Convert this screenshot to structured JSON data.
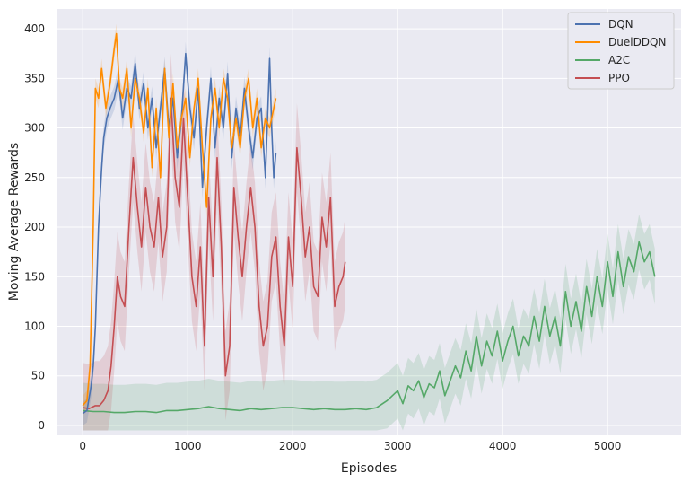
{
  "chart_data": {
    "type": "line",
    "title": "",
    "xlabel": "Episodes",
    "ylabel": "Moving Average Rewards",
    "xlim": [
      -250,
      5700
    ],
    "ylim": [
      -10,
      420
    ],
    "xticks": [
      0,
      1000,
      2000,
      3000,
      4000,
      5000
    ],
    "yticks": [
      0,
      50,
      100,
      150,
      200,
      250,
      300,
      350,
      400
    ],
    "grid": true,
    "legend_position": "top-right",
    "series": [
      {
        "name": "DQN",
        "color": "#4c72b0",
        "band": 12,
        "x": [
          0,
          40,
          80,
          100,
          120,
          150,
          180,
          200,
          230,
          260,
          300,
          340,
          380,
          420,
          460,
          500,
          540,
          580,
          620,
          660,
          700,
          740,
          780,
          820,
          860,
          900,
          940,
          980,
          1020,
          1060,
          1100,
          1140,
          1180,
          1220,
          1260,
          1300,
          1340,
          1380,
          1420,
          1460,
          1500,
          1540,
          1580,
          1620,
          1660,
          1700,
          1740,
          1780,
          1800,
          1820,
          1840
        ],
        "y": [
          12,
          15,
          40,
          60,
          100,
          200,
          260,
          290,
          310,
          320,
          330,
          350,
          310,
          340,
          330,
          365,
          320,
          345,
          300,
          330,
          280,
          320,
          360,
          300,
          330,
          270,
          310,
          375,
          320,
          290,
          340,
          240,
          300,
          350,
          280,
          330,
          300,
          355,
          270,
          320,
          290,
          340,
          300,
          270,
          310,
          320,
          250,
          370,
          300,
          250,
          275
        ]
      },
      {
        "name": "DuelDDQN",
        "color": "#ff8c00",
        "band": 10,
        "x": [
          0,
          40,
          70,
          100,
          120,
          150,
          180,
          220,
          260,
          300,
          320,
          350,
          380,
          420,
          460,
          500,
          540,
          580,
          620,
          660,
          700,
          740,
          780,
          820,
          860,
          900,
          940,
          980,
          1020,
          1060,
          1100,
          1140,
          1180,
          1220,
          1260,
          1300,
          1340,
          1380,
          1420,
          1460,
          1500,
          1540,
          1580,
          1620,
          1660,
          1700,
          1740,
          1780,
          1820,
          1840
        ],
        "y": [
          20,
          25,
          60,
          200,
          340,
          330,
          360,
          320,
          345,
          380,
          395,
          340,
          330,
          360,
          300,
          350,
          330,
          295,
          340,
          260,
          320,
          250,
          360,
          290,
          345,
          280,
          310,
          330,
          270,
          320,
          350,
          280,
          220,
          310,
          340,
          300,
          350,
          330,
          280,
          310,
          280,
          330,
          350,
          300,
          330,
          280,
          310,
          300,
          320,
          330
        ]
      },
      {
        "name": "A2C",
        "color": "#55a868",
        "band": 28,
        "x": [
          0,
          100,
          200,
          300,
          400,
          500,
          600,
          700,
          800,
          900,
          1000,
          1100,
          1200,
          1300,
          1400,
          1500,
          1600,
          1700,
          1800,
          1900,
          2000,
          2100,
          2200,
          2300,
          2400,
          2500,
          2600,
          2700,
          2800,
          2900,
          2950,
          3000,
          3050,
          3100,
          3150,
          3200,
          3250,
          3300,
          3350,
          3400,
          3450,
          3500,
          3550,
          3600,
          3650,
          3700,
          3750,
          3800,
          3850,
          3900,
          3950,
          4000,
          4050,
          4100,
          4150,
          4200,
          4250,
          4300,
          4350,
          4400,
          4450,
          4500,
          4550,
          4600,
          4650,
          4700,
          4750,
          4800,
          4850,
          4900,
          4950,
          5000,
          5050,
          5100,
          5150,
          5200,
          5250,
          5300,
          5350,
          5400,
          5430,
          5450
        ],
        "y": [
          15,
          14,
          14,
          13,
          13,
          14,
          14,
          13,
          15,
          15,
          16,
          17,
          19,
          17,
          16,
          15,
          17,
          16,
          17,
          18,
          18,
          17,
          16,
          17,
          16,
          16,
          17,
          16,
          18,
          25,
          30,
          35,
          22,
          40,
          35,
          45,
          28,
          42,
          38,
          55,
          30,
          45,
          60,
          48,
          75,
          55,
          90,
          60,
          85,
          70,
          95,
          65,
          85,
          100,
          70,
          90,
          80,
          110,
          85,
          120,
          90,
          110,
          80,
          135,
          100,
          125,
          95,
          140,
          110,
          150,
          120,
          165,
          130,
          175,
          140,
          170,
          155,
          185,
          165,
          175,
          160,
          150
        ]
      },
      {
        "name": "PPO",
        "color": "#c44e52",
        "band": 45,
        "x": [
          0,
          60,
          120,
          160,
          200,
          240,
          270,
          300,
          330,
          360,
          400,
          440,
          480,
          520,
          560,
          600,
          640,
          680,
          720,
          760,
          800,
          840,
          880,
          920,
          960,
          1000,
          1040,
          1080,
          1120,
          1160,
          1200,
          1240,
          1280,
          1320,
          1360,
          1400,
          1440,
          1480,
          1520,
          1560,
          1600,
          1640,
          1680,
          1720,
          1760,
          1800,
          1840,
          1880,
          1920,
          1960,
          2000,
          2040,
          2080,
          2120,
          2160,
          2200,
          2240,
          2280,
          2320,
          2360,
          2400,
          2440,
          2480,
          2500
        ],
        "y": [
          18,
          17,
          20,
          20,
          25,
          35,
          60,
          100,
          150,
          130,
          120,
          200,
          270,
          220,
          180,
          240,
          200,
          180,
          230,
          170,
          200,
          330,
          250,
          220,
          310,
          230,
          150,
          120,
          180,
          80,
          230,
          150,
          270,
          180,
          50,
          80,
          240,
          190,
          150,
          200,
          240,
          200,
          120,
          80,
          100,
          170,
          190,
          120,
          80,
          190,
          140,
          280,
          230,
          170,
          200,
          140,
          130,
          210,
          180,
          230,
          120,
          140,
          150,
          165
        ]
      }
    ]
  }
}
